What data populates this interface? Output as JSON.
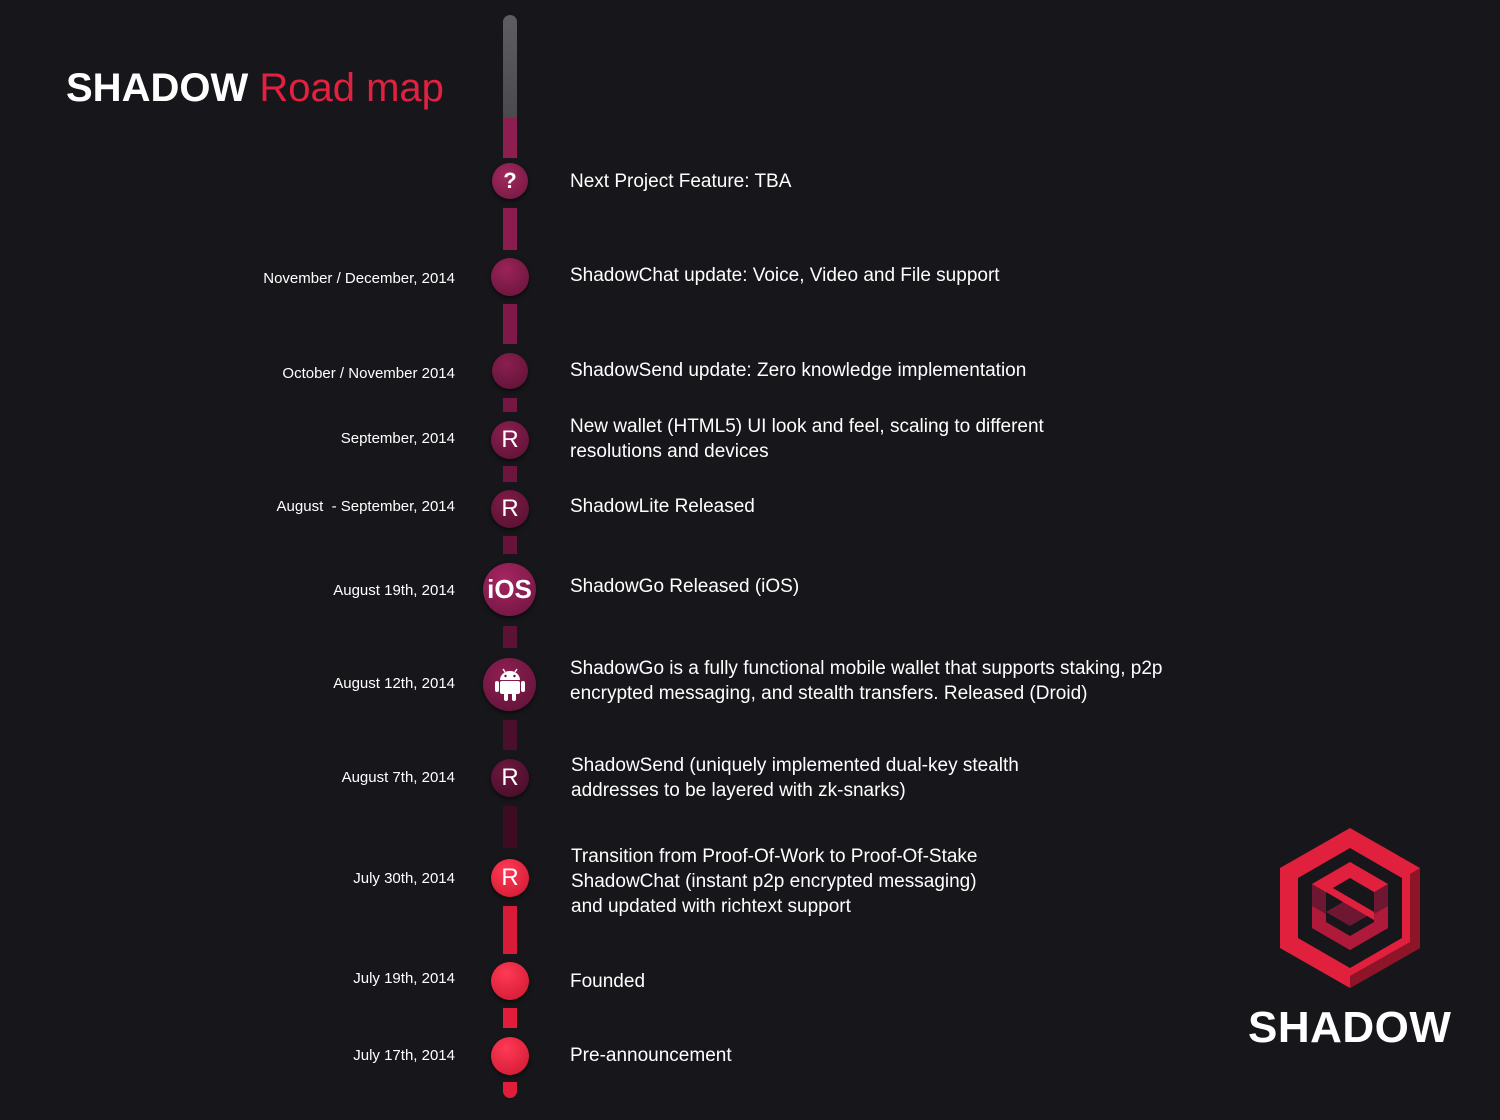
{
  "header": {
    "title_brand": "SHADOW",
    "title_rest": "Road map"
  },
  "colors": {
    "accent": "#e3203f",
    "background": "#17171b",
    "plum": "#8a1d4e",
    "red": "#e8203f"
  },
  "milestones": [
    {
      "date": "",
      "icon": "question-icon",
      "glyph": "?",
      "text": "Next Project Feature: TBA"
    },
    {
      "date": "November / December, 2014",
      "icon": "dot-icon",
      "glyph": "",
      "text": "ShadowChat update: Voice, Video and File support"
    },
    {
      "date": "October / November 2014",
      "icon": "dot-icon",
      "glyph": "",
      "text": "ShadowSend update: Zero knowledge implementation"
    },
    {
      "date": "September, 2014",
      "icon": "released-icon",
      "glyph": "R",
      "text": "New wallet (HTML5) UI look and feel, scaling to different resolutions and devices"
    },
    {
      "date": "August  - September, 2014",
      "icon": "released-icon",
      "glyph": "R",
      "text": "ShadowLite Released"
    },
    {
      "date": "August 19th, 2014",
      "icon": "ios-icon",
      "glyph": "iOS",
      "text": "ShadowGo Released (iOS)"
    },
    {
      "date": "August 12th, 2014",
      "icon": "android-icon",
      "glyph": "",
      "text": "ShadowGo is a fully functional mobile wallet that supports staking, p2p encrypted messaging, and stealth transfers. Released (Droid)"
    },
    {
      "date": "August 7th, 2014",
      "icon": "released-icon",
      "glyph": "R",
      "text": "ShadowSend (uniquely implemented dual-key stealth addresses to be layered with zk-snarks)"
    },
    {
      "date": "July 30th, 2014",
      "icon": "released-icon",
      "glyph": "R",
      "text": "Transition from Proof-Of-Work to Proof-Of-Stake ShadowChat (instant p2p encrypted messaging) and updated with richtext support"
    },
    {
      "date": "July 19th, 2014",
      "icon": "dot-icon",
      "glyph": "",
      "text": "Founded"
    },
    {
      "date": "July 17th, 2014",
      "icon": "dot-icon",
      "glyph": "",
      "text": "Pre-announcement"
    }
  ],
  "logo": {
    "text": "SHADOW",
    "icon": "shadow-hexagon-logo-icon"
  }
}
